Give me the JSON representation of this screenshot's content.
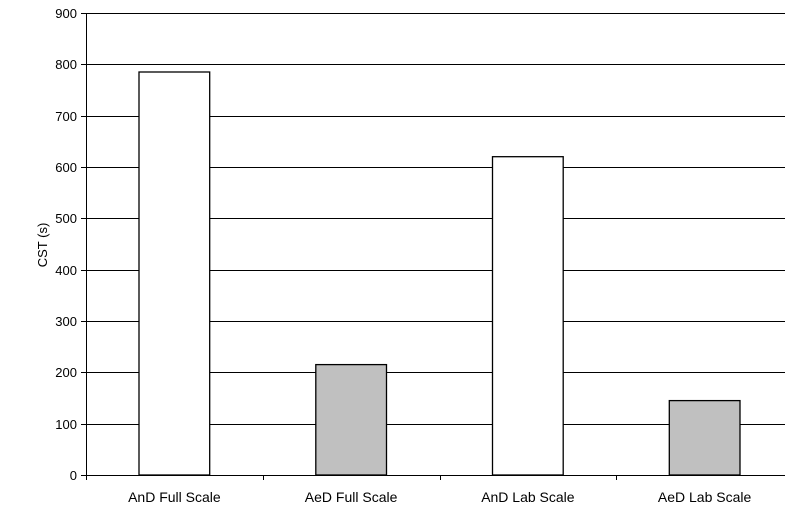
{
  "chart_data": {
    "type": "bar",
    "title": "",
    "xlabel": "",
    "ylabel": "CST (s)",
    "categories": [
      "AnD Full Scale",
      "AeD Full Scale",
      "AnD Lab Scale",
      "AeD Lab Scale"
    ],
    "values": [
      785,
      215,
      620,
      145
    ],
    "bar_colors": [
      "#ffffff",
      "#c0c0c0",
      "#ffffff",
      "#c0c0c0"
    ],
    "ylim": [
      0,
      900
    ],
    "yticks": [
      0,
      100,
      200,
      300,
      400,
      500,
      600,
      700,
      800,
      900
    ],
    "grid": true,
    "legend": "none"
  }
}
